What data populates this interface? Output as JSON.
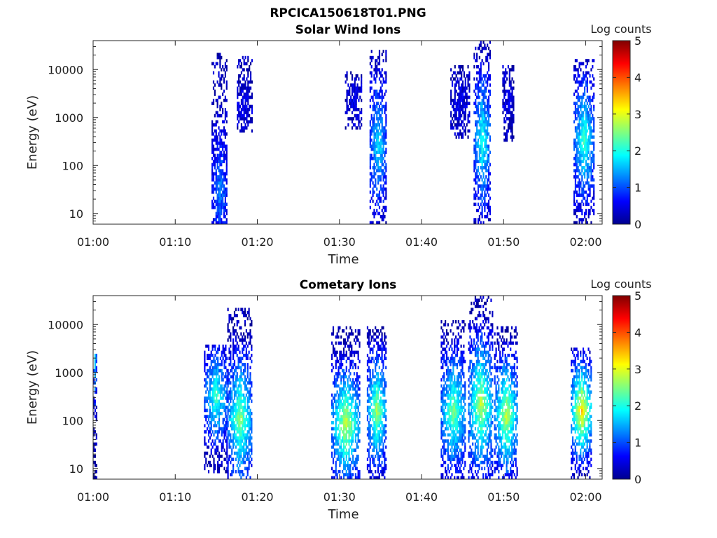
{
  "figure": {
    "file_title": "RPCICA150618T01.PNG"
  },
  "chart_data": [
    {
      "type": "heatmap",
      "title": "Solar Wind Ions",
      "xlabel": "Time",
      "ylabel": "Energy (eV)",
      "y_scale": "log",
      "ylim": [
        6,
        40000
      ],
      "xlim_minutes": [
        0,
        62
      ],
      "x_ticks": [
        "01:00",
        "01:10",
        "01:20",
        "01:30",
        "01:40",
        "01:50",
        "02:00"
      ],
      "y_ticks": [
        "10",
        "100",
        "1000",
        "10000"
      ],
      "colorbar": {
        "label": "Log counts",
        "ticks": [
          "0",
          "1",
          "2",
          "3",
          "4",
          "5"
        ],
        "range": [
          0,
          5
        ],
        "colormap": "jet"
      },
      "bursts": [
        {
          "t_start": "01:14:25",
          "t_end": "01:16:20",
          "emin_eV": 6,
          "emax_eV": 20000,
          "peak_log_counts": 1.0,
          "peak_energy_eV": 30
        },
        {
          "t_start": "01:17:30",
          "t_end": "01:19:20",
          "emin_eV": 450,
          "emax_eV": 17000,
          "peak_log_counts": 0.3,
          "peak_energy_eV": 2000
        },
        {
          "t_start": "01:30:40",
          "t_end": "01:32:40",
          "emin_eV": 500,
          "emax_eV": 9000,
          "peak_log_counts": 0.3,
          "peak_energy_eV": 2000
        },
        {
          "t_start": "01:33:40",
          "t_end": "01:35:40",
          "emin_eV": 6,
          "emax_eV": 24000,
          "peak_log_counts": 1.6,
          "peak_energy_eV": 250
        },
        {
          "t_start": "01:43:30",
          "t_end": "01:45:50",
          "emin_eV": 350,
          "emax_eV": 11000,
          "peak_log_counts": 0.3,
          "peak_energy_eV": 2000
        },
        {
          "t_start": "01:46:20",
          "t_end": "01:48:20",
          "emin_eV": 6,
          "emax_eV": 37000,
          "peak_log_counts": 1.9,
          "peak_energy_eV": 300
        },
        {
          "t_start": "01:49:50",
          "t_end": "01:51:10",
          "emin_eV": 300,
          "emax_eV": 11000,
          "peak_log_counts": 0.3,
          "peak_energy_eV": 2000
        },
        {
          "t_start": "01:58:30",
          "t_end": "02:01:00",
          "emin_eV": 6,
          "emax_eV": 16000,
          "peak_log_counts": 2.0,
          "peak_energy_eV": 300
        }
      ]
    },
    {
      "type": "heatmap",
      "title": "Cometary Ions",
      "xlabel": "Time",
      "ylabel": "Energy (eV)",
      "y_scale": "log",
      "ylim": [
        6,
        40000
      ],
      "xlim_minutes": [
        0,
        62
      ],
      "x_ticks": [
        "01:00",
        "01:10",
        "01:20",
        "01:30",
        "01:40",
        "01:50",
        "02:00"
      ],
      "y_ticks": [
        "10",
        "100",
        "1000",
        "10000"
      ],
      "colorbar": {
        "label": "Log counts",
        "ticks": [
          "0",
          "1",
          "2",
          "3",
          "4",
          "5"
        ],
        "range": [
          0,
          5
        ],
        "colormap": "jet"
      },
      "bursts": [
        {
          "t_start": "01:00:00",
          "t_end": "01:00:20",
          "emin_eV": 6,
          "emax_eV": 2300,
          "peak_log_counts": 1.6,
          "peak_energy_eV": 1500
        },
        {
          "t_start": "01:13:30",
          "t_end": "01:16:20",
          "emin_eV": 8,
          "emax_eV": 3500,
          "peak_log_counts": 2.0,
          "peak_energy_eV": 300
        },
        {
          "t_start": "01:16:20",
          "t_end": "01:19:20",
          "emin_eV": 6,
          "emax_eV": 22000,
          "peak_log_counts": 2.4,
          "peak_energy_eV": 100
        },
        {
          "t_start": "01:29:00",
          "t_end": "01:32:30",
          "emin_eV": 6,
          "emax_eV": 8000,
          "peak_log_counts": 2.7,
          "peak_energy_eV": 80
        },
        {
          "t_start": "01:33:20",
          "t_end": "01:35:40",
          "emin_eV": 6,
          "emax_eV": 8000,
          "peak_log_counts": 2.5,
          "peak_energy_eV": 150
        },
        {
          "t_start": "01:42:20",
          "t_end": "01:45:20",
          "emin_eV": 6,
          "emax_eV": 11000,
          "peak_log_counts": 2.3,
          "peak_energy_eV": 150
        },
        {
          "t_start": "01:45:40",
          "t_end": "01:48:40",
          "emin_eV": 6,
          "emax_eV": 37000,
          "peak_log_counts": 2.6,
          "peak_energy_eV": 200
        },
        {
          "t_start": "01:48:50",
          "t_end": "01:51:40",
          "emin_eV": 6,
          "emax_eV": 9000,
          "peak_log_counts": 2.7,
          "peak_energy_eV": 120
        },
        {
          "t_start": "01:58:10",
          "t_end": "02:00:40",
          "emin_eV": 6,
          "emax_eV": 3200,
          "peak_log_counts": 3.2,
          "peak_energy_eV": 150
        }
      ]
    }
  ]
}
